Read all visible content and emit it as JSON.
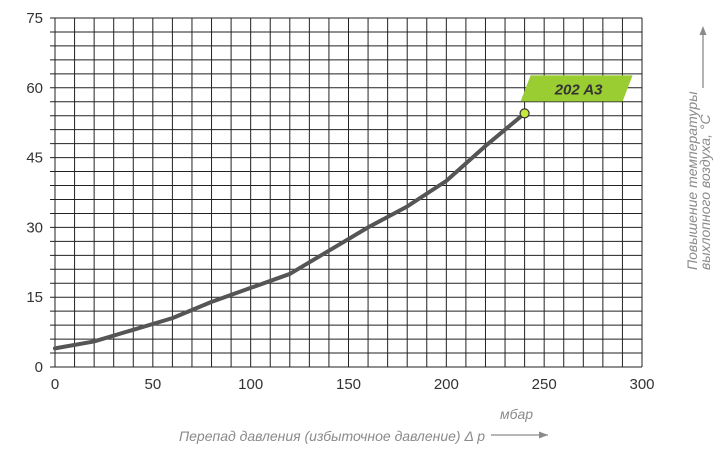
{
  "chart_data": {
    "type": "line",
    "title": "",
    "xlabel": "Перепад давления (избыточное давление) Δ p",
    "xunit": "мбар",
    "ylabel_line1": "Повышение температуры",
    "ylabel_line2": "выхлопного воздуха, °C",
    "xlim": [
      0,
      300
    ],
    "ylim": [
      0,
      75
    ],
    "x_ticks": [
      0,
      50,
      100,
      150,
      200,
      250,
      300
    ],
    "y_ticks": [
      0,
      15,
      30,
      45,
      60,
      75
    ],
    "x_tick_labels": [
      "0",
      "50",
      "100",
      "150",
      "200",
      "250",
      "300"
    ],
    "y_tick_labels": [
      "0",
      "15",
      "30",
      "45",
      "60",
      "75"
    ],
    "grid": true,
    "grid_x_step": 10,
    "grid_y_step": 3,
    "series": [
      {
        "name": "202 A3",
        "x": [
          0,
          20,
          40,
          60,
          80,
          100,
          120,
          140,
          160,
          180,
          200,
          220,
          240
        ],
        "y": [
          4,
          5.5,
          8,
          10.5,
          14,
          17,
          20,
          25,
          30,
          34.5,
          40,
          47.5,
          54.5
        ]
      }
    ],
    "colors": {
      "line": "#555555",
      "grid": "#222222",
      "badge": "#9acd32",
      "marker": "#c6e83a",
      "arrow": "#8a8a8a"
    }
  }
}
